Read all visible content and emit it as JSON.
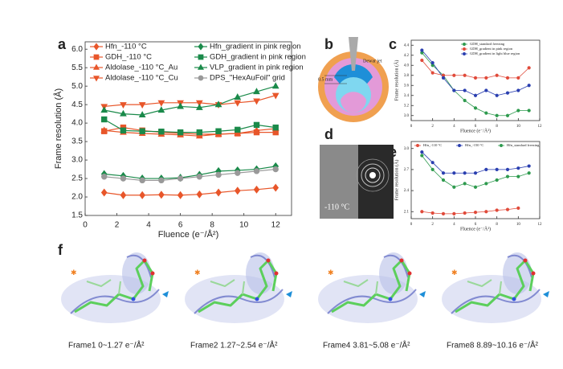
{
  "chart_data": [
    {
      "type": "line",
      "ylabel": "Frame resolution (Å)",
      "xlabel": "Fluence (e⁻/Å²)",
      "x": [
        1.2,
        2.4,
        3.6,
        4.8,
        6,
        7.2,
        8.4,
        9.6,
        10.8,
        12
      ],
      "xlim": [
        0,
        13
      ],
      "xticks": [
        0,
        2,
        4,
        6,
        8,
        10,
        12
      ],
      "ylim": [
        1.5,
        6.2
      ],
      "yticks": [
        {
          "value": 1.5,
          "label": "1.5"
        },
        {
          "value": 2,
          "label": "2.0"
        },
        {
          "value": 2.5,
          "label": "2.5"
        },
        {
          "value": 3,
          "label": "3.0"
        },
        {
          "value": 3.5,
          "label": "3.5"
        },
        {
          "value": 4,
          "label": "4.0"
        },
        {
          "value": 4.5,
          "label": "4.5"
        },
        {
          "value": 5,
          "label": "5.0"
        },
        {
          "value": 5.5,
          "label": "5.5"
        },
        {
          "value": 6,
          "label": "6.0"
        }
      ],
      "legend": "top",
      "series": [
        {
          "name": "Hfn_-110 °C",
          "color": "#e8562a",
          "marker": "diamond",
          "values": [
            2.12,
            2.05,
            2.05,
            2.06,
            2.05,
            2.07,
            2.12,
            2.17,
            2.2,
            2.25
          ]
        },
        {
          "name": "GDH_-110 °C",
          "color": "#e8562a",
          "marker": "square",
          "values": [
            3.78,
            3.88,
            3.8,
            3.75,
            3.72,
            3.7,
            3.7,
            3.72,
            3.75,
            3.75
          ]
        },
        {
          "name": "Aldolase_-110 °C_Au",
          "color": "#e8562a",
          "marker": "triangle-up",
          "values": [
            3.8,
            3.75,
            3.72,
            3.7,
            3.68,
            3.65,
            3.7,
            3.72,
            3.8,
            3.85
          ]
        },
        {
          "name": "Aldolase_-110 °C_Cu",
          "color": "#e8562a",
          "marker": "triangle-down",
          "values": [
            4.45,
            4.5,
            4.5,
            4.55,
            4.55,
            4.55,
            4.5,
            4.55,
            4.6,
            4.75
          ]
        },
        {
          "name": "Hfn_gradient in pink region",
          "color": "#1a8a4a",
          "marker": "diamond",
          "values": [
            2.62,
            2.57,
            2.5,
            2.5,
            2.52,
            2.6,
            2.7,
            2.72,
            2.75,
            2.83
          ]
        },
        {
          "name": "GDH_gradient in pink region",
          "color": "#1a8a4a",
          "marker": "square",
          "values": [
            4.1,
            3.8,
            3.78,
            3.77,
            3.75,
            3.75,
            3.78,
            3.82,
            3.95,
            3.88
          ]
        },
        {
          "name": "VLP_gradient in pink region",
          "color": "#1a8a4a",
          "marker": "triangle-up",
          "values": [
            4.35,
            4.25,
            4.22,
            4.35,
            4.45,
            4.42,
            4.5,
            4.7,
            4.85,
            5.0
          ]
        },
        {
          "name": "DPS_\"HexAuFoil\" grid",
          "color": "#999999",
          "marker": "circle",
          "values": [
            2.55,
            2.5,
            2.45,
            2.45,
            2.5,
            2.55,
            2.6,
            2.65,
            2.7,
            2.75
          ]
        }
      ]
    },
    {
      "type": "line",
      "ylabel": "Frame resolution (Å)",
      "xlabel": "Fluence (e⁻/Å²)",
      "x": [
        1,
        2,
        3,
        4,
        5,
        6,
        7,
        8,
        9,
        10,
        11
      ],
      "xlim": [
        0,
        12
      ],
      "xticks": [
        0,
        2,
        4,
        6,
        8,
        10,
        12
      ],
      "ylim": [
        2.9,
        4.5
      ],
      "yticks": [
        {
          "value": 3,
          "label": "3.0"
        },
        3.2,
        3.4,
        3.6,
        3.8,
        {
          "value": 4,
          "label": "4.0"
        },
        4.2,
        4.4
      ],
      "legend": "upper right",
      "series": [
        {
          "name": "GDH_standard freezing",
          "color": "#2e9a4e",
          "marker": "circle",
          "values": [
            4.25,
            4.0,
            3.8,
            3.5,
            3.3,
            3.15,
            3.05,
            3.0,
            3.0,
            3.1,
            3.1
          ]
        },
        {
          "name": "GDH_gradient in pink region",
          "color": "#e04a3a",
          "marker": "circle",
          "values": [
            4.1,
            3.85,
            3.8,
            3.8,
            3.8,
            3.75,
            3.75,
            3.8,
            3.75,
            3.75,
            3.95
          ]
        },
        {
          "name": "GDH_gradient in light blue region",
          "color": "#2a3fb0",
          "marker": "circle",
          "values": [
            4.3,
            4.05,
            3.75,
            3.5,
            3.5,
            3.4,
            3.5,
            3.4,
            3.45,
            3.5,
            3.6
          ]
        }
      ]
    },
    {
      "type": "line",
      "ylabel": "Frame resolution (Å)",
      "xlabel": "Fluence (e⁻/Å²)",
      "x": [
        1,
        2,
        3,
        4,
        5,
        6,
        7,
        8,
        9,
        10,
        11
      ],
      "xlim": [
        0,
        12
      ],
      "xticks": [
        0,
        2,
        4,
        6,
        8,
        10,
        12
      ],
      "ylim": [
        2.0,
        3.1
      ],
      "yticks": [
        2.1,
        2.4,
        2.7,
        {
          "value": 3,
          "label": "3.0"
        }
      ],
      "legend": "top",
      "series": [
        {
          "name": "Hfn_-110 °C",
          "color": "#e04a3a",
          "marker": "circle",
          "values": [
            2.1,
            2.08,
            2.07,
            2.07,
            2.08,
            2.09,
            2.1,
            2.12,
            2.13,
            2.15,
            null
          ]
        },
        {
          "name": "Hfn_-150 °C",
          "color": "#2a3fb0",
          "marker": "circle",
          "values": [
            2.95,
            2.8,
            2.65,
            2.65,
            2.65,
            2.65,
            2.7,
            2.7,
            2.7,
            2.72,
            2.75
          ]
        },
        {
          "name": "Hfn_standard freezing",
          "color": "#2e9a4e",
          "marker": "circle",
          "values": [
            2.9,
            2.7,
            2.55,
            2.45,
            2.5,
            2.45,
            2.5,
            2.55,
            2.6,
            2.6,
            2.65
          ]
        }
      ]
    }
  ],
  "panel_labels": [
    "a",
    "b",
    "c",
    "d",
    "e",
    "f"
  ],
  "diagram_b": {
    "labels": [
      "Dewar jet",
      "0.5 mm"
    ]
  },
  "image_d": {
    "label": "-110 °C"
  },
  "structures": {
    "captions": [
      "Frame1 0~1.27 e⁻/Å²",
      "Frame2 1.27~2.54 e⁻/Å²",
      "Frame4 3.81~5.08 e⁻/Å²",
      "Frame8 8.89~10.16 e⁻/Å²"
    ]
  }
}
